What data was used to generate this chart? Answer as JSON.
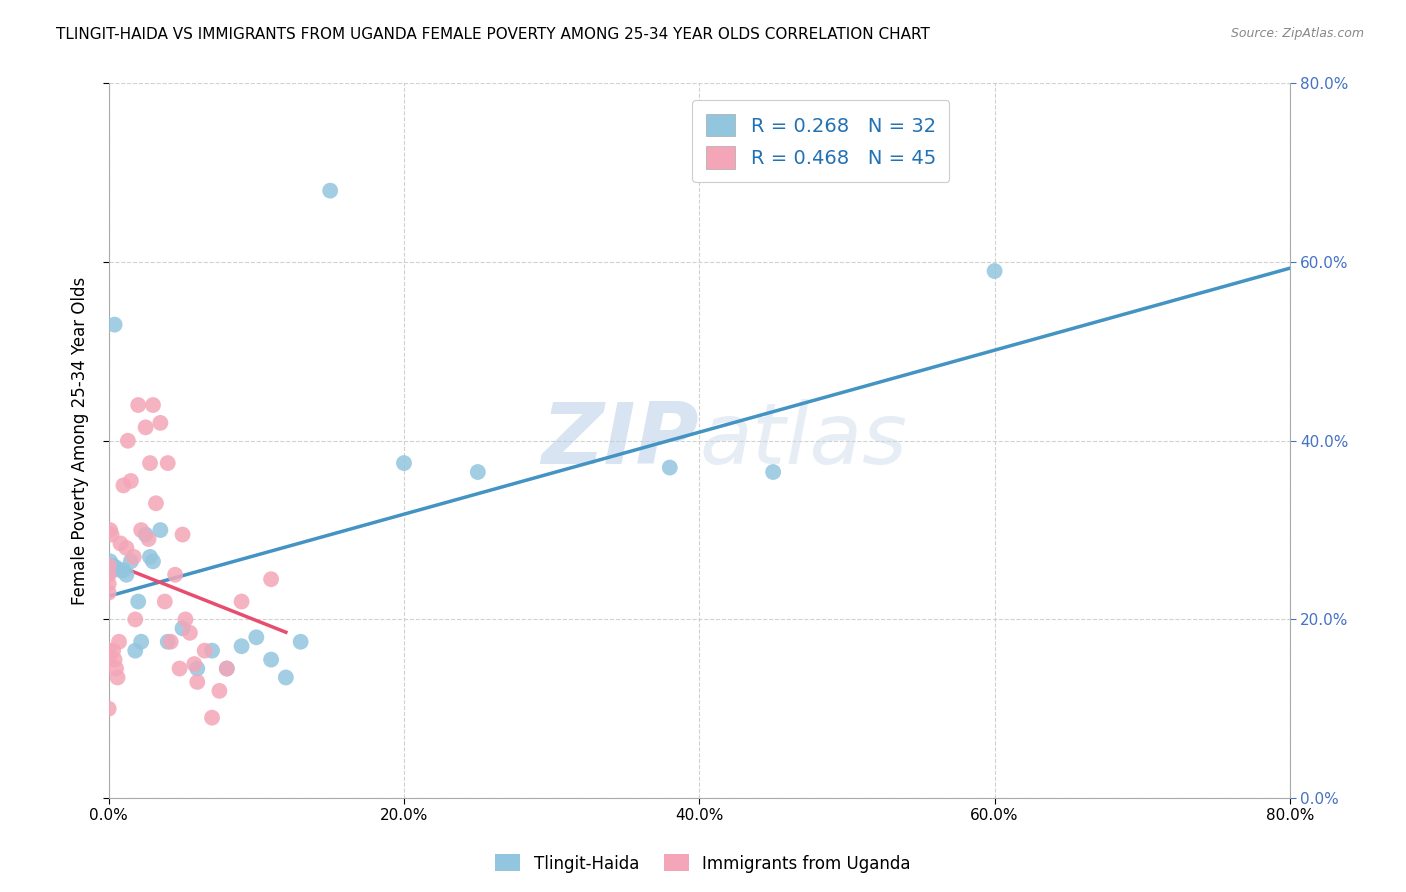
{
  "title": "TLINGIT-HAIDA VS IMMIGRANTS FROM UGANDA FEMALE POVERTY AMONG 25-34 YEAR OLDS CORRELATION CHART",
  "source": "Source: ZipAtlas.com",
  "ylabel_label": "Female Poverty Among 25-34 Year Olds",
  "xlim": [
    0.0,
    0.8
  ],
  "ylim": [
    0.0,
    0.8
  ],
  "tlingit_R": 0.268,
  "tlingit_N": 32,
  "uganda_R": 0.468,
  "uganda_N": 45,
  "tlingit_color": "#92c5de",
  "uganda_color": "#f4a6b8",
  "tlingit_line_color": "#4393c3",
  "uganda_line_color": "#e84c6e",
  "tlingit_x": [
    0.001,
    0.002,
    0.003,
    0.004,
    0.005,
    0.008,
    0.01,
    0.012,
    0.015,
    0.018,
    0.02,
    0.022,
    0.025,
    0.028,
    0.03,
    0.035,
    0.04,
    0.05,
    0.06,
    0.07,
    0.08,
    0.09,
    0.1,
    0.11,
    0.12,
    0.13,
    0.15,
    0.2,
    0.25,
    0.38,
    0.45,
    0.6
  ],
  "tlingit_y": [
    0.265,
    0.255,
    0.26,
    0.53,
    0.258,
    0.255,
    0.255,
    0.25,
    0.265,
    0.165,
    0.22,
    0.175,
    0.295,
    0.27,
    0.265,
    0.3,
    0.175,
    0.19,
    0.145,
    0.165,
    0.145,
    0.17,
    0.18,
    0.155,
    0.135,
    0.175,
    0.68,
    0.375,
    0.365,
    0.37,
    0.365,
    0.59
  ],
  "uganda_x": [
    0.0,
    0.0,
    0.0,
    0.0,
    0.0,
    0.0,
    0.0,
    0.001,
    0.002,
    0.003,
    0.004,
    0.005,
    0.006,
    0.007,
    0.008,
    0.01,
    0.012,
    0.013,
    0.015,
    0.017,
    0.018,
    0.02,
    0.022,
    0.025,
    0.027,
    0.028,
    0.03,
    0.032,
    0.035,
    0.038,
    0.04,
    0.042,
    0.045,
    0.048,
    0.05,
    0.052,
    0.055,
    0.058,
    0.06,
    0.065,
    0.07,
    0.075,
    0.08,
    0.09,
    0.11
  ],
  "uganda_y": [
    0.26,
    0.25,
    0.24,
    0.23,
    0.165,
    0.155,
    0.1,
    0.3,
    0.295,
    0.165,
    0.155,
    0.145,
    0.135,
    0.175,
    0.285,
    0.35,
    0.28,
    0.4,
    0.355,
    0.27,
    0.2,
    0.44,
    0.3,
    0.415,
    0.29,
    0.375,
    0.44,
    0.33,
    0.42,
    0.22,
    0.375,
    0.175,
    0.25,
    0.145,
    0.295,
    0.2,
    0.185,
    0.15,
    0.13,
    0.165,
    0.09,
    0.12,
    0.145,
    0.22,
    0.245
  ],
  "watermark_zip": "ZIP",
  "watermark_atlas": "atlas",
  "yticks": [
    0.0,
    0.2,
    0.4,
    0.6,
    0.8
  ],
  "xticks": [
    0.0,
    0.2,
    0.4,
    0.6,
    0.8
  ]
}
